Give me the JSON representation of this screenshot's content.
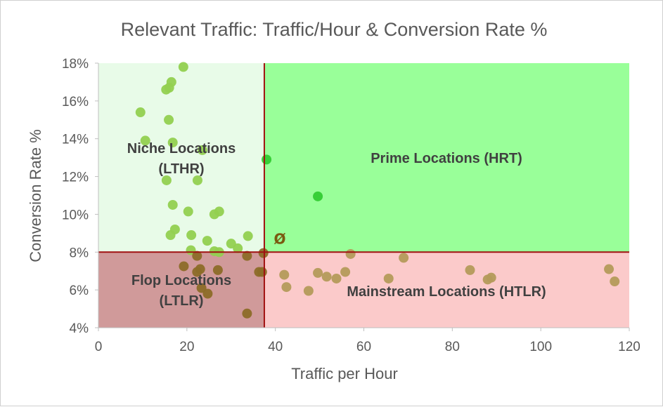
{
  "chart_data": {
    "type": "scatter",
    "title": "Relevant Traffic: Traffic/Hour & Conversion Rate %",
    "xlabel": "Traffic per Hour",
    "ylabel": "Conversion Rate %",
    "xlim": [
      0,
      120
    ],
    "ylim": [
      4,
      18
    ],
    "x_ticks": [
      "0",
      "20",
      "40",
      "60",
      "80",
      "100",
      "120"
    ],
    "y_ticks": [
      "4%",
      "6%",
      "8%",
      "10%",
      "12%",
      "14%",
      "16%",
      "18%"
    ],
    "grid": false,
    "threshold_x": 37.5,
    "threshold_y": 8.0,
    "quadrants": [
      {
        "key": "niche",
        "lines": [
          "Niche Locations",
          "(LTHR)"
        ],
        "color": "#e8fbe8"
      },
      {
        "key": "prime",
        "lines": [
          "Prime Locations (HRT)"
        ],
        "color": "#99ff99"
      },
      {
        "key": "flop",
        "lines": [
          "Flop Locations",
          "(LTLR)"
        ],
        "color": "#d09a9a"
      },
      {
        "key": "mainstream",
        "lines": [
          "Mainstream Locations (HTLR)"
        ],
        "color": "#fbcaca"
      }
    ],
    "colors": {
      "threshold_line": "#a01010",
      "niche_point": "#92d050",
      "prime_point": "#33cc33",
      "low_point": "#b49a5a",
      "flop_point": "#8c6c28"
    },
    "average_marker": {
      "symbol": "Ø",
      "x": 41,
      "y": 8.7
    },
    "points": [
      [
        19.2,
        17.8
      ],
      [
        16.5,
        17.0
      ],
      [
        16.0,
        16.7
      ],
      [
        15.3,
        16.6
      ],
      [
        9.5,
        15.4
      ],
      [
        15.9,
        15.0
      ],
      [
        10.6,
        13.9
      ],
      [
        16.8,
        13.8
      ],
      [
        23.5,
        13.4
      ],
      [
        15.4,
        11.8
      ],
      [
        22.4,
        11.8
      ],
      [
        38.0,
        12.9
      ],
      [
        49.6,
        10.95
      ],
      [
        16.8,
        10.5
      ],
      [
        20.3,
        10.15
      ],
      [
        27.3,
        10.15
      ],
      [
        26.2,
        10.0
      ],
      [
        17.3,
        9.2
      ],
      [
        16.3,
        8.9
      ],
      [
        21.0,
        8.9
      ],
      [
        33.8,
        8.85
      ],
      [
        24.6,
        8.6
      ],
      [
        30.0,
        8.45
      ],
      [
        31.5,
        8.2
      ],
      [
        20.9,
        8.1
      ],
      [
        26.2,
        8.05
      ],
      [
        27.3,
        8.0
      ],
      [
        22.3,
        7.8
      ],
      [
        33.6,
        7.8
      ],
      [
        37.3,
        7.95
      ],
      [
        57.0,
        7.9
      ],
      [
        69.0,
        7.7
      ],
      [
        19.3,
        7.25
      ],
      [
        23.0,
        7.1
      ],
      [
        22.3,
        6.95
      ],
      [
        27.0,
        7.05
      ],
      [
        36.3,
        6.95
      ],
      [
        37.0,
        6.95
      ],
      [
        42.0,
        6.8
      ],
      [
        49.6,
        6.9
      ],
      [
        51.6,
        6.7
      ],
      [
        55.8,
        6.95
      ],
      [
        53.8,
        6.6
      ],
      [
        65.6,
        6.6
      ],
      [
        84.0,
        7.05
      ],
      [
        88.0,
        6.55
      ],
      [
        88.8,
        6.65
      ],
      [
        115.4,
        7.1
      ],
      [
        116.7,
        6.45
      ],
      [
        42.5,
        6.15
      ],
      [
        47.5,
        5.95
      ],
      [
        23.3,
        6.1
      ],
      [
        24.7,
        5.8
      ],
      [
        33.6,
        4.75
      ]
    ]
  }
}
